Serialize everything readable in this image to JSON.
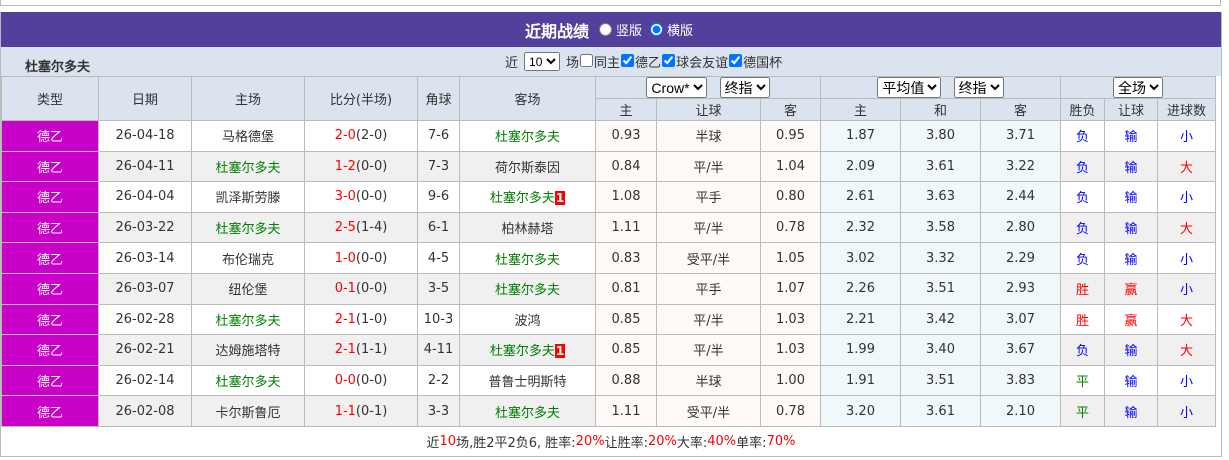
{
  "title": "近期战绩",
  "view_options": [
    "竖版",
    "横版"
  ],
  "view_selected": "横版",
  "team": "杜塞尔多夫",
  "filter": {
    "prefix": "近",
    "count": "10",
    "suffix": "场",
    "checks": [
      {
        "label": "同主",
        "checked": false
      },
      {
        "label": "德乙",
        "checked": true
      },
      {
        "label": "球会友谊",
        "checked": true
      },
      {
        "label": "德国杯",
        "checked": true
      }
    ]
  },
  "headers": {
    "type": "类型",
    "date": "日期",
    "home": "主场",
    "score": "比分(半场)",
    "corner": "角球",
    "away": "客场",
    "ah_company": "Crow*",
    "ah_kind": "终指",
    "eu_company": "平均值",
    "eu_kind": "终指",
    "scope": "全场",
    "ah_cols": [
      "主",
      "让球",
      "客"
    ],
    "eu_cols": [
      "主",
      "和",
      "客"
    ],
    "res_cols": [
      "胜负",
      "让球",
      "进球数"
    ]
  },
  "colors": {
    "title_bg": "#52409b",
    "league_bg": "#c800c8",
    "team_green": "#008000",
    "red": "#ff0000",
    "blue": "#0000ff"
  },
  "rows": [
    {
      "league": "德乙",
      "date": "26-04-18",
      "home": "马格德堡",
      "ft": "2-0",
      "ht": "(2-0)",
      "corner": "7-6",
      "away": "杜塞尔多夫",
      "away_badge": "",
      "ah": [
        "0.93",
        "半球",
        "0.95"
      ],
      "eu": [
        "1.87",
        "3.80",
        "3.71"
      ],
      "res": [
        "负",
        "输",
        "小"
      ]
    },
    {
      "league": "德乙",
      "date": "26-04-11",
      "home": "杜塞尔多夫",
      "ft": "1-2",
      "ht": "(0-0)",
      "corner": "7-3",
      "away": "荷尔斯泰因",
      "away_badge": "",
      "ah": [
        "0.84",
        "平/半",
        "1.04"
      ],
      "eu": [
        "2.09",
        "3.61",
        "3.22"
      ],
      "res": [
        "负",
        "输",
        "大"
      ]
    },
    {
      "league": "德乙",
      "date": "26-04-04",
      "home": "凯泽斯劳滕",
      "ft": "3-0",
      "ht": "(0-0)",
      "corner": "9-6",
      "away": "杜塞尔多夫",
      "away_badge": "1",
      "ah": [
        "1.08",
        "平手",
        "0.80"
      ],
      "eu": [
        "2.61",
        "3.63",
        "2.44"
      ],
      "res": [
        "负",
        "输",
        "小"
      ]
    },
    {
      "league": "德乙",
      "date": "26-03-22",
      "home": "杜塞尔多夫",
      "ft": "2-5",
      "ht": "(1-4)",
      "corner": "6-1",
      "away": "柏林赫塔",
      "away_badge": "",
      "ah": [
        "1.11",
        "平/半",
        "0.78"
      ],
      "eu": [
        "2.32",
        "3.58",
        "2.80"
      ],
      "res": [
        "负",
        "输",
        "大"
      ]
    },
    {
      "league": "德乙",
      "date": "26-03-14",
      "home": "布伦瑞克",
      "ft": "1-0",
      "ht": "(0-0)",
      "corner": "4-5",
      "away": "杜塞尔多夫",
      "away_badge": "",
      "ah": [
        "0.83",
        "受平/半",
        "1.05"
      ],
      "eu": [
        "3.02",
        "3.32",
        "2.29"
      ],
      "res": [
        "负",
        "输",
        "小"
      ]
    },
    {
      "league": "德乙",
      "date": "26-03-07",
      "home": "纽伦堡",
      "ft": "0-1",
      "ht": "(0-0)",
      "corner": "3-5",
      "away": "杜塞尔多夫",
      "away_badge": "",
      "ah": [
        "0.81",
        "平手",
        "1.07"
      ],
      "eu": [
        "2.26",
        "3.51",
        "2.93"
      ],
      "res": [
        "胜",
        "赢",
        "小"
      ]
    },
    {
      "league": "德乙",
      "date": "26-02-28",
      "home": "杜塞尔多夫",
      "ft": "2-1",
      "ht": "(1-0)",
      "corner": "10-3",
      "away": "波鸿",
      "away_badge": "",
      "ah": [
        "0.85",
        "平/半",
        "1.03"
      ],
      "eu": [
        "2.21",
        "3.42",
        "3.07"
      ],
      "res": [
        "胜",
        "赢",
        "大"
      ]
    },
    {
      "league": "德乙",
      "date": "26-02-21",
      "home": "达姆施塔特",
      "ft": "2-1",
      "ht": "(1-1)",
      "corner": "4-11",
      "away": "杜塞尔多夫",
      "away_badge": "1",
      "ah": [
        "0.85",
        "平/半",
        "1.03"
      ],
      "eu": [
        "1.99",
        "3.40",
        "3.67"
      ],
      "res": [
        "负",
        "输",
        "大"
      ]
    },
    {
      "league": "德乙",
      "date": "26-02-14",
      "home": "杜塞尔多夫",
      "ft": "0-0",
      "ht": "(0-0)",
      "corner": "2-2",
      "away": "普鲁士明斯特",
      "away_badge": "",
      "ah": [
        "0.88",
        "半球",
        "1.00"
      ],
      "eu": [
        "1.91",
        "3.51",
        "3.83"
      ],
      "res": [
        "平",
        "输",
        "小"
      ]
    },
    {
      "league": "德乙",
      "date": "26-02-08",
      "home": "卡尔斯鲁厄",
      "ft": "1-1",
      "ht": "(0-1)",
      "corner": "3-3",
      "away": "杜塞尔多夫",
      "away_badge": "",
      "ah": [
        "1.11",
        "受平/半",
        "0.78"
      ],
      "eu": [
        "3.20",
        "3.61",
        "2.10"
      ],
      "res": [
        "平",
        "输",
        "小"
      ]
    }
  ],
  "summary": {
    "p1": "近",
    "n": "10",
    "p2": "场,胜2平2负6, 胜率:",
    "win": "20%",
    "p3": " 让胜率:",
    "ahwin": "20%",
    "p4": " 大率:",
    "big": "40%",
    "p5": " 单率:",
    "odd": "70%"
  }
}
